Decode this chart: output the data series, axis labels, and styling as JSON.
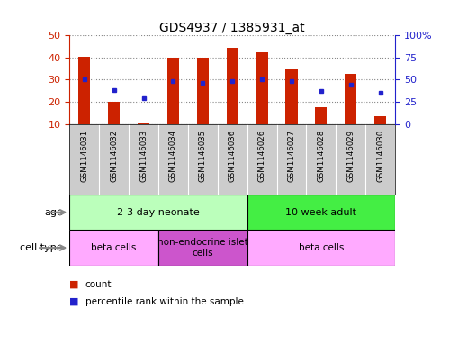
{
  "title": "GDS4937 / 1385931_at",
  "samples": [
    "GSM1146031",
    "GSM1146032",
    "GSM1146033",
    "GSM1146034",
    "GSM1146035",
    "GSM1146036",
    "GSM1146026",
    "GSM1146027",
    "GSM1146028",
    "GSM1146029",
    "GSM1146030"
  ],
  "counts": [
    40.5,
    20.0,
    10.5,
    40.0,
    40.0,
    44.5,
    42.5,
    34.5,
    17.5,
    32.5,
    13.5
  ],
  "percentiles": [
    50,
    38,
    29,
    48,
    46,
    48,
    50,
    48,
    37,
    44,
    35
  ],
  "ylim_left": [
    10,
    50
  ],
  "ylim_right": [
    0,
    100
  ],
  "left_ticks": [
    10,
    20,
    30,
    40,
    50
  ],
  "right_ticks": [
    0,
    25,
    50,
    75,
    100
  ],
  "bar_color": "#cc2200",
  "dot_color": "#2222cc",
  "bar_bottom": 10,
  "age_groups": [
    {
      "label": "2-3 day neonate",
      "start": 0,
      "end": 6,
      "color": "#bbffbb"
    },
    {
      "label": "10 week adult",
      "start": 6,
      "end": 11,
      "color": "#44ee44"
    }
  ],
  "cell_groups": [
    {
      "label": "beta cells",
      "start": 0,
      "end": 3,
      "color": "#ffaaff"
    },
    {
      "label": "non-endocrine islet\ncells",
      "start": 3,
      "end": 6,
      "color": "#cc55cc"
    },
    {
      "label": "beta cells",
      "start": 6,
      "end": 11,
      "color": "#ffaaff"
    }
  ],
  "left_axis_color": "#cc2200",
  "right_axis_color": "#2222cc",
  "grid_color": "#888888",
  "sample_bg": "#cccccc",
  "plot_border_color": "#000000"
}
